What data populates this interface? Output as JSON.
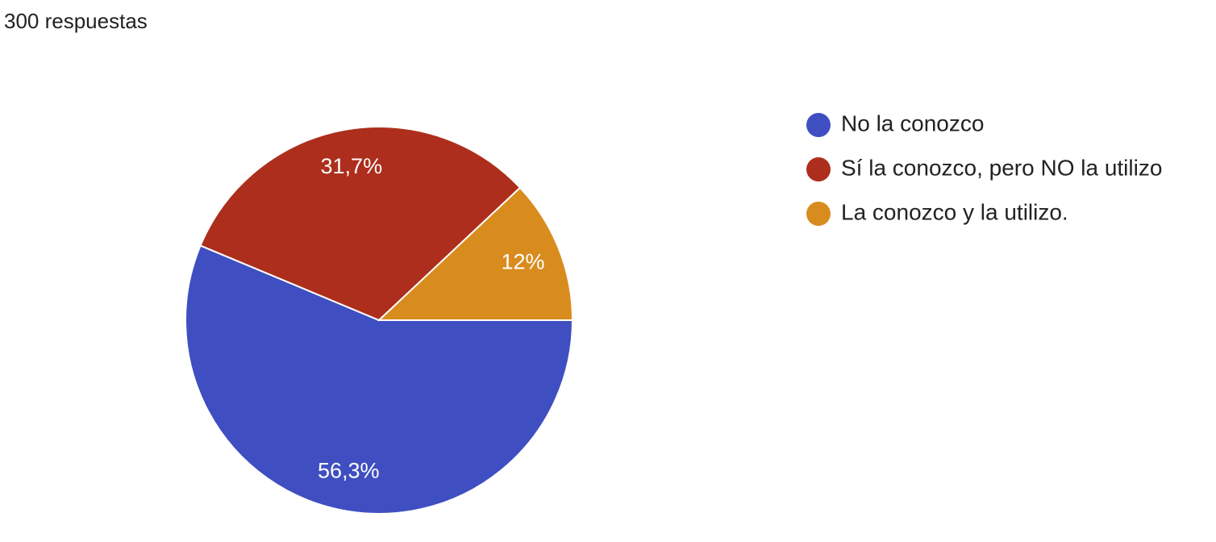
{
  "chart_data": {
    "type": "pie",
    "title": "300 respuestas",
    "categories": [
      "No la conozco",
      "Sí la conozco, pero NO la utilizo",
      "La conozco y la utilizo."
    ],
    "values": [
      56.3,
      31.7,
      12
    ],
    "value_labels": [
      "56,3%",
      "31,7%",
      "12%"
    ],
    "colors": [
      "#3f4fc1",
      "#ad2e1c",
      "#d98c1e"
    ],
    "legend": "right"
  }
}
